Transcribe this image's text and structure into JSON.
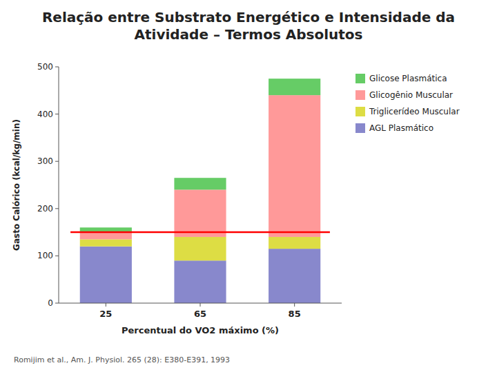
{
  "chart_data": {
    "type": "bar",
    "stacked": true,
    "title": "Relação entre Substrato Energético e Intensidade da Atividade – Termos Absolutos",
    "subtitle": "Romijim et al., Am. J. Physiol. 265 (28): E380-E391, 1993",
    "xlabel": "Percentual do VO2 máximo (%)",
    "ylabel": "Gasto Calórico (kcal/kg/min)",
    "categories": [
      "25",
      "65",
      "85"
    ],
    "series": [
      {
        "name": "AGL Plasmático",
        "color": "#8888CC",
        "values": [
          120,
          90,
          115
        ]
      },
      {
        "name": "Triglicerídeo Muscular",
        "color": "#DDDD44",
        "values": [
          15,
          50,
          25
        ]
      },
      {
        "name": "Glicogênio Muscular",
        "color": "#FF9999",
        "values": [
          15,
          100,
          300
        ]
      },
      {
        "name": "Glicose Plasmática",
        "color": "#66CC66",
        "values": [
          10,
          25,
          35
        ]
      }
    ],
    "reference_line": {
      "value": 150,
      "color": "#FF0000"
    },
    "ylim": [
      0,
      500
    ],
    "yticks": [
      0,
      100,
      200,
      300,
      400,
      500
    ],
    "grid": false,
    "legend": "right"
  }
}
